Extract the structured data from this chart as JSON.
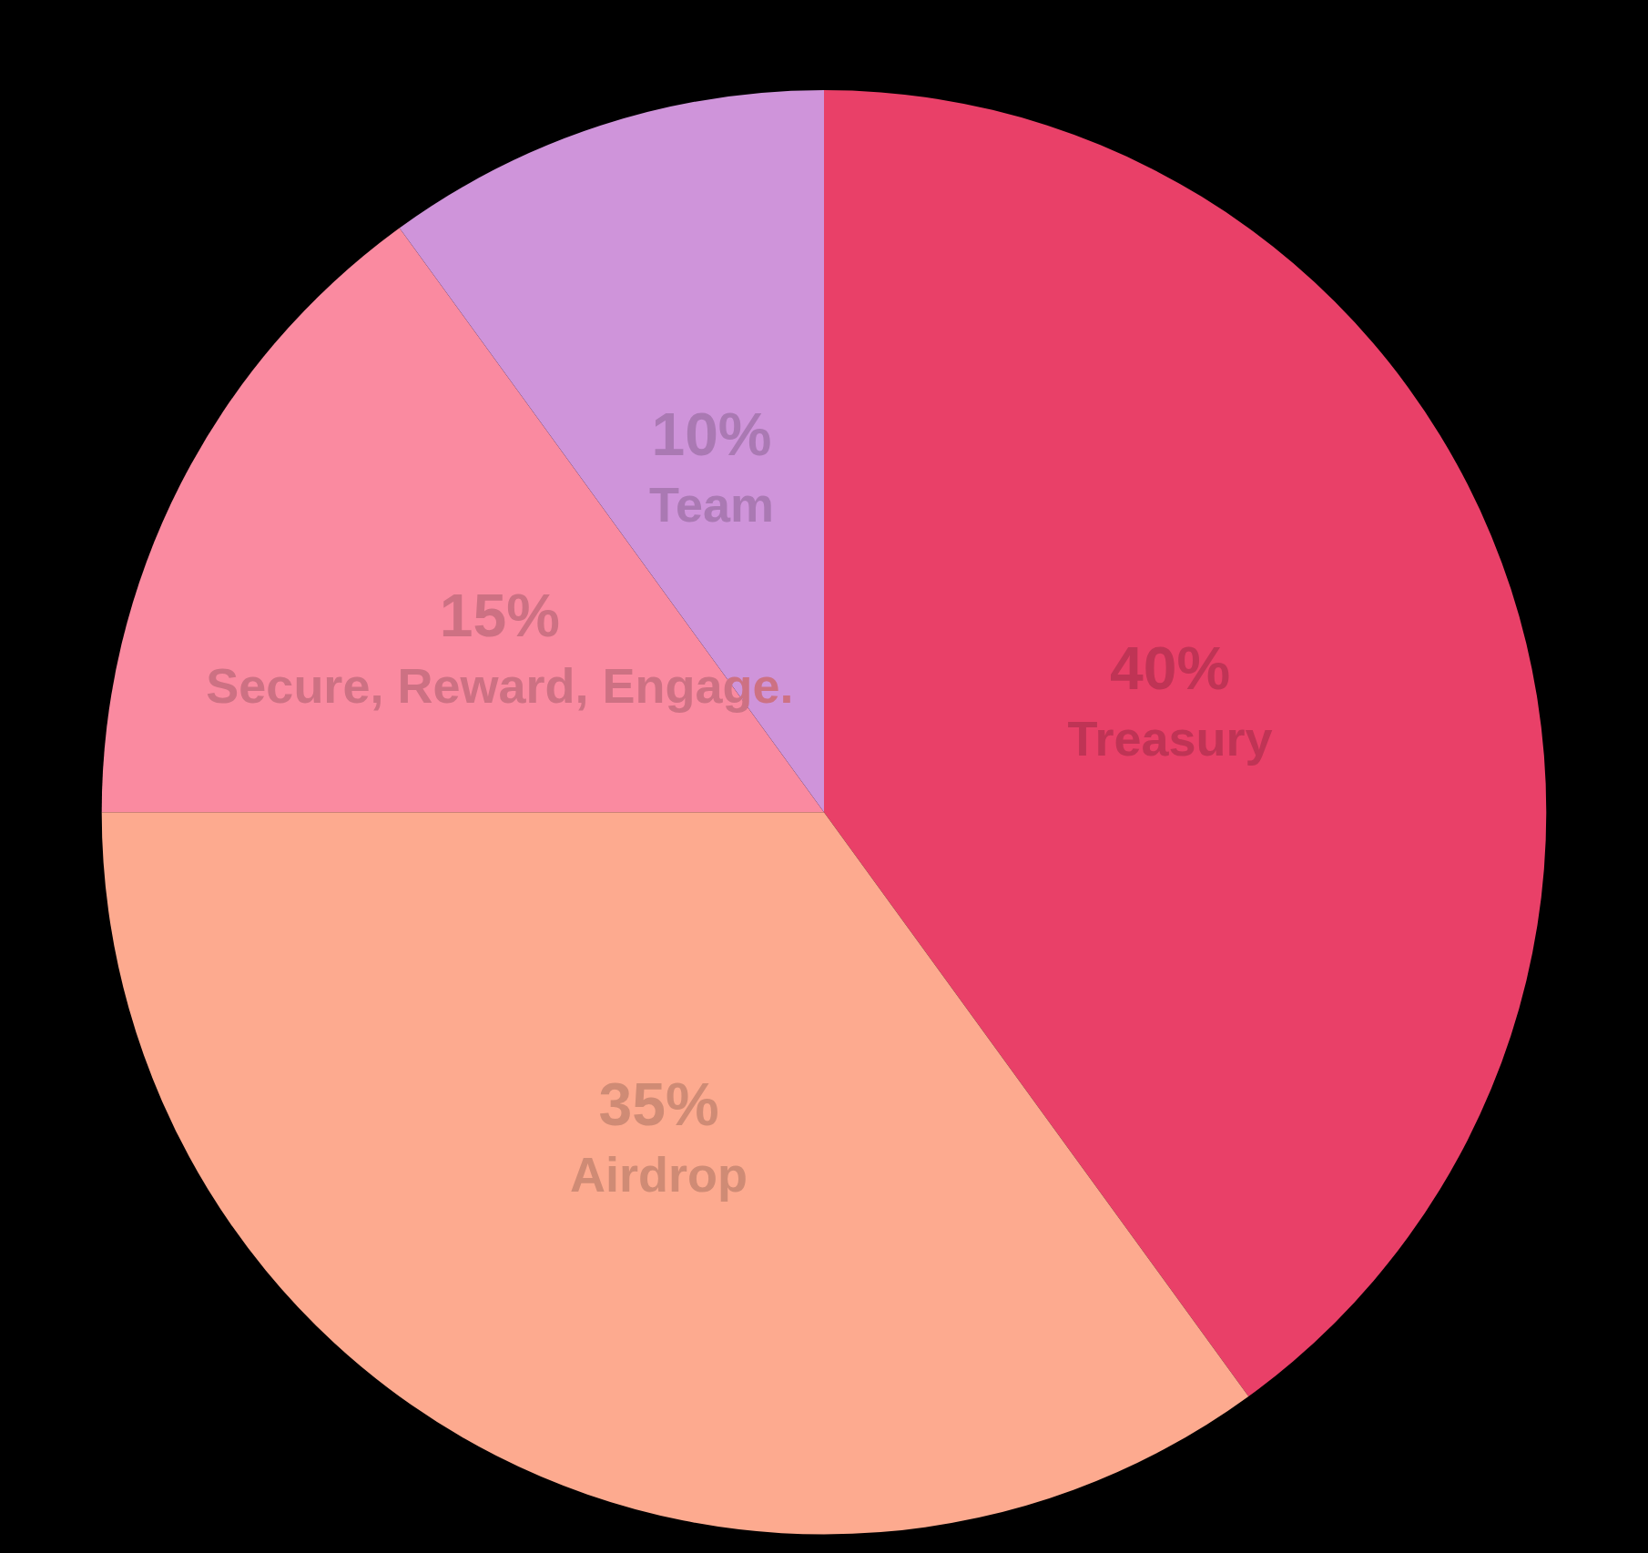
{
  "chart_data": {
    "type": "pie",
    "categories": [
      "Treasury",
      "Airdrop",
      "Secure, Reward, Engage.",
      "Team"
    ],
    "values": [
      40,
      35,
      15,
      10
    ],
    "colors": [
      "#e94068",
      "#fdaa8f",
      "#fa8aa0",
      "#cf94da"
    ],
    "value_labels": [
      "40%",
      "35%",
      "15%",
      "10%"
    ],
    "legend": false
  }
}
